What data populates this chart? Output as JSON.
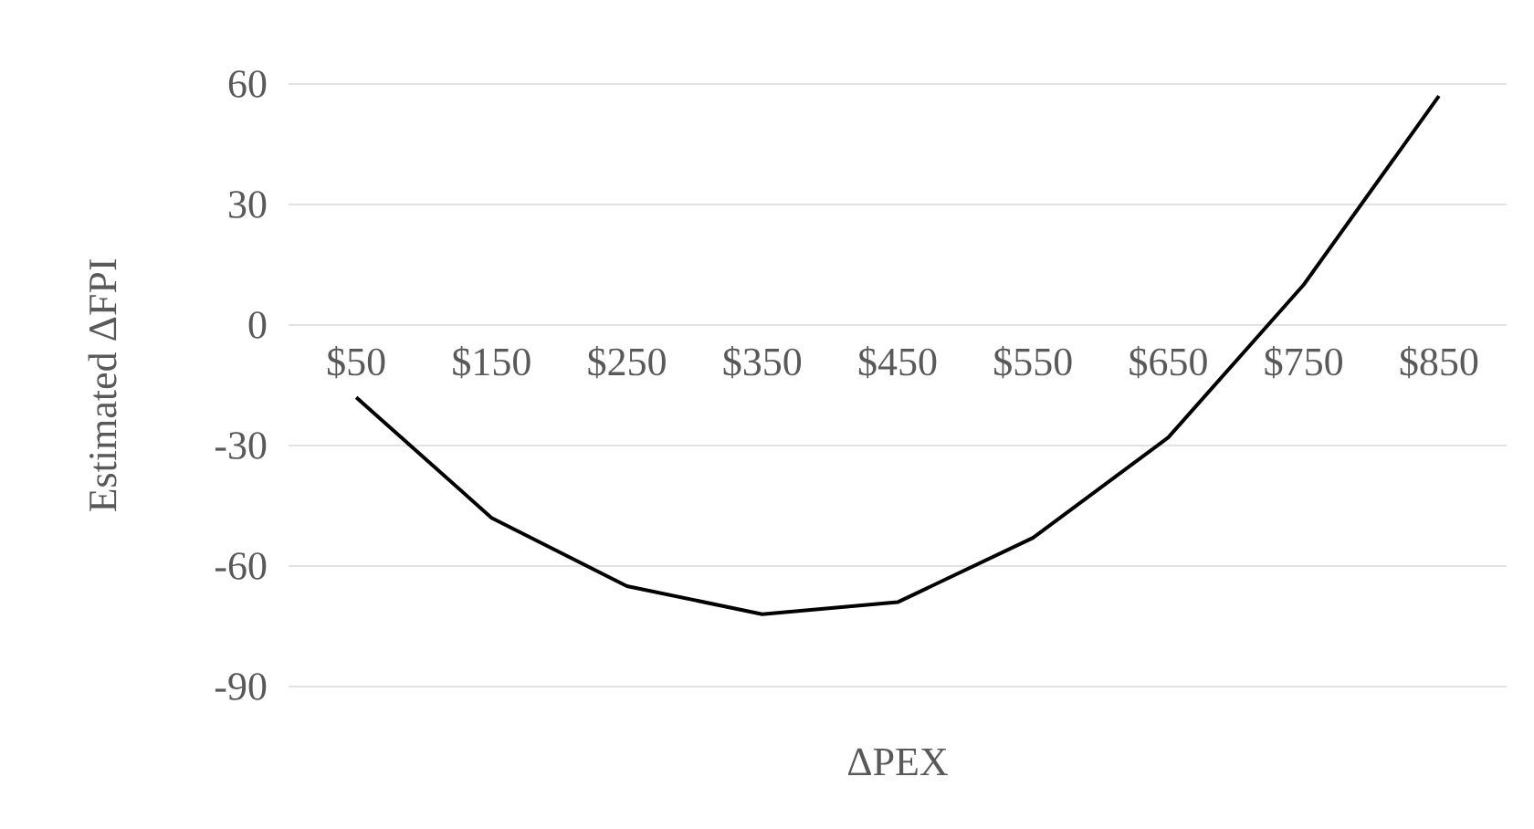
{
  "chart_data": {
    "type": "line",
    "xlabel": "ΔPEX",
    "ylabel": "Estimated ΔFPI",
    "categories": [
      "$50",
      "$150",
      "$250",
      "$350",
      "$450",
      "$550",
      "$650",
      "$750",
      "$850"
    ],
    "series": [
      {
        "color": "#000000",
        "values": [
          -18,
          -48,
          -65,
          -72,
          -69,
          -53,
          -28,
          10,
          57
        ]
      }
    ],
    "ylim": [
      -90,
      60
    ],
    "yticks": [
      -90,
      -60,
      -30,
      0,
      30,
      60
    ],
    "grid": "y"
  }
}
